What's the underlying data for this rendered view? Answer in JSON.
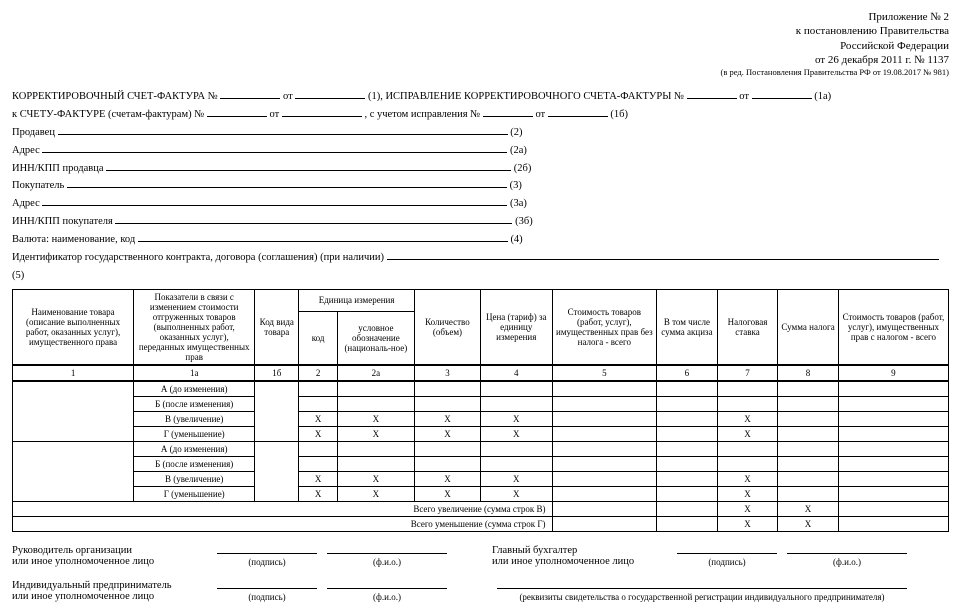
{
  "header": {
    "appendix": "Приложение № 2",
    "decree1": "к постановлению Правительства",
    "decree2": "Российской Федерации",
    "decree3": "от 26 декабря 2011 г. № 1137",
    "small": "(в ред. Постановления Правительства РФ от 19.08.2017 № 981)"
  },
  "lines": {
    "l1a": "КОРРЕКТИРОВОЧНЫЙ СЧЕТ-ФАКТУРА №",
    "ot": "от",
    "l1b": "(1), ИСПРАВЛЕНИЕ КОРРЕКТИРОВОЧНОГО СЧЕТА-ФАКТУРЫ №",
    "l1c": "(1а)",
    "l2a": "к СЧЕТУ-ФАКТУРЕ (счетам-фактурам) №",
    "l2b": ", с учетом исправления №",
    "l2c": "(1б)",
    "seller": "Продавец",
    "n2": "(2)",
    "addr": "Адрес",
    "n2a": "(2а)",
    "inn_s": "ИНН/КПП продавца",
    "n2b": "(2б)",
    "buyer": "Покупатель",
    "n3": "(3)",
    "addr2": "Адрес",
    "n3a": "(3а)",
    "inn_b": "ИНН/КПП покупателя",
    "n3b": "(3б)",
    "currency": "Валюта: наименование, код",
    "n4": "(4)",
    "contract": "Идентификатор государственного контракта, договора (соглашения) (при наличии)",
    "n5": "(5)"
  },
  "table": {
    "headers": {
      "c1": "Наименование товара (описание выполненных работ, оказанных услуг), имущественного права",
      "c1a": "Показатели в связи с изменением стоимости отгруженных товаров (выполненных работ, оказанных услуг), переданных имущественных прав",
      "c1b": "Код вида товара",
      "unit": "Единица измерения",
      "c2": "код",
      "c2a": "условное обозначение (националь-ное)",
      "c3": "Количество (объем)",
      "c4": "Цена (тариф) за единицу измерения",
      "c5": "Стоимость товаров (работ, услуг), имущественных прав без налога - всего",
      "c6": "В том числе сумма акциза",
      "c7": "Налоговая ставка",
      "c8": "Сумма налога",
      "c9": "Стоимость товаров (работ, услуг), имущественных прав с налогом - всего"
    },
    "nums": [
      "1",
      "1а",
      "1б",
      "2",
      "2а",
      "3",
      "4",
      "5",
      "6",
      "7",
      "8",
      "9"
    ],
    "rows": {
      "A": "А (до изменения)",
      "B": "Б (после изменения)",
      "V": "В (увеличение)",
      "G": "Г (уменьшение)"
    },
    "x": "X",
    "totV": "Всего увеличение (сумма строк В)",
    "totG": "Всего уменьшение (сумма строк Г)"
  },
  "sig": {
    "head": "Руководитель организации",
    "or": "или иное уполномоченное лицо",
    "acct": "Главный бухгалтер",
    "entr": "Индивидуальный предприниматель",
    "podpis": "(подпись)",
    "fio": "(ф.и.о.)",
    "req": "(реквизиты свидетельства о государственной регистрации индивидуального предпринимателя)"
  }
}
